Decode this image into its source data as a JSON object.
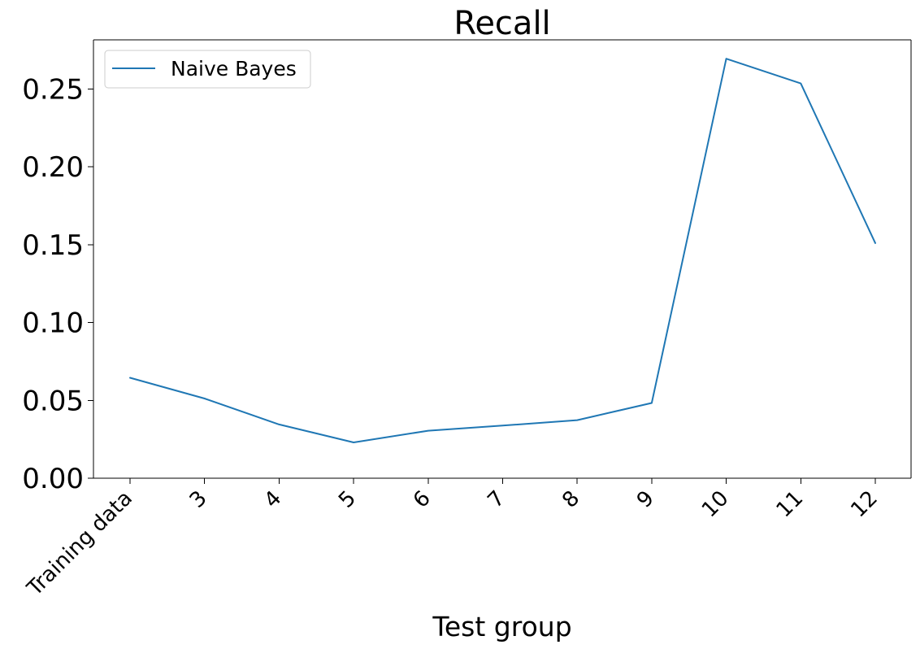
{
  "chart_data": {
    "type": "line",
    "title": "Recall",
    "xlabel": "Test group",
    "ylabel": "",
    "categories": [
      "Training data",
      "3",
      "4",
      "5",
      "6",
      "7",
      "8",
      "9",
      "10",
      "11",
      "12"
    ],
    "series": [
      {
        "name": "Naive Bayes",
        "color": "#1f77b4",
        "values": [
          0.0645,
          0.0512,
          0.0345,
          0.023,
          0.0305,
          0.0338,
          0.0373,
          0.0483,
          0.2694,
          0.2535,
          0.151
        ]
      }
    ],
    "ylim": [
      0,
      0.2815
    ],
    "yticks": [
      "0.00",
      "0.05",
      "0.10",
      "0.15",
      "0.20",
      "0.25"
    ],
    "ytick_values": [
      0,
      0.05,
      0.1,
      0.15,
      0.2,
      0.25
    ],
    "grid": false,
    "legend_position": "top-left"
  }
}
